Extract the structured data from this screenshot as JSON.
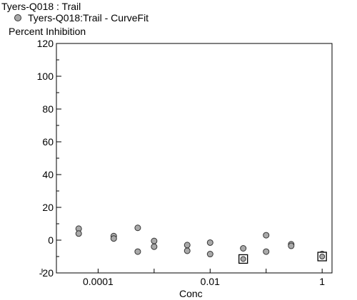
{
  "chart_data": {
    "type": "scatter",
    "title": "Tyers-Q018  : Trail",
    "xlabel": "Conc",
    "ylabel": "Percent Inhibition",
    "xscale": "log",
    "xlim": [
      1.8e-05,
      1.5
    ],
    "ylim": [
      -20,
      120
    ],
    "x_ticks": [
      0.0001,
      0.01,
      1
    ],
    "x_tick_labels": [
      "0.0001",
      "0.01",
      "1"
    ],
    "y_ticks": [
      -20,
      0,
      20,
      40,
      60,
      80,
      100,
      120
    ],
    "y_tick_labels": [
      "-20",
      "0",
      "20",
      "40",
      "60",
      "80",
      "100",
      "120"
    ],
    "grid": false,
    "legend_position": "top-left",
    "series": [
      {
        "name": "Tyers-Q018:Trail - CurveFit",
        "marker": "circle",
        "color": "#a9a9a9",
        "points": [
          {
            "x": 4.5e-05,
            "y": 7
          },
          {
            "x": 4.5e-05,
            "y": 4
          },
          {
            "x": 0.00019,
            "y": 2.5
          },
          {
            "x": 0.00019,
            "y": 1
          },
          {
            "x": 0.00051,
            "y": 7.5
          },
          {
            "x": 0.00051,
            "y": -7
          },
          {
            "x": 0.001,
            "y": -0.5
          },
          {
            "x": 0.001,
            "y": -4
          },
          {
            "x": 0.0039,
            "y": -3
          },
          {
            "x": 0.0039,
            "y": -6.5
          },
          {
            "x": 0.01,
            "y": -1.5
          },
          {
            "x": 0.01,
            "y": -8.5
          },
          {
            "x": 0.039,
            "y": -5
          },
          {
            "x": 0.1,
            "y": 3
          },
          {
            "x": 0.1,
            "y": -7
          },
          {
            "x": 0.28,
            "y": -2.5
          },
          {
            "x": 0.28,
            "y": -3.5
          },
          {
            "x": 1,
            "y": -8.5
          }
        ]
      },
      {
        "name": "",
        "marker": "square",
        "color": "#a9a9a9",
        "points": [
          {
            "x": 0.039,
            "y": -11.5
          },
          {
            "x": 1,
            "y": -10
          }
        ]
      }
    ]
  }
}
